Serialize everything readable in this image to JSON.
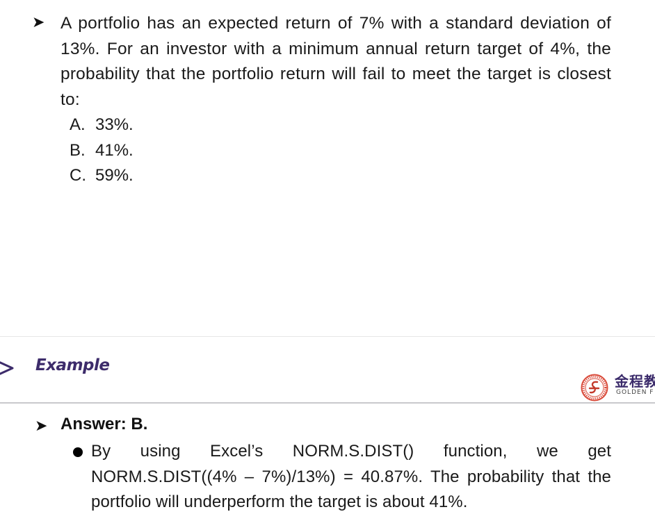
{
  "question": {
    "text": "A portfolio has an expected return of 7% with a standard deviation of 13%. For an investor with a minimum annual return target of 4%, the probability that the portfolio return will fail to meet the target is closest to:",
    "options": [
      {
        "letter": "A.",
        "text": "33%."
      },
      {
        "letter": "B.",
        "text": "41%."
      },
      {
        "letter": "C.",
        "text": "59%."
      }
    ]
  },
  "example_header": {
    "title": "Example",
    "logo_cn": "金程教",
    "logo_en": "GOLDEN F",
    "accent_color": "#3d2c6b",
    "seal_color": "#d94a3a"
  },
  "answer": {
    "title": "Answer: B.",
    "text": "By using Excel’s NORM.S.DIST() function, we get NORM.S.DIST((4% – 7%)/13%) = 40.87%. The probability that the portfolio will underperform the target is about 41%."
  }
}
